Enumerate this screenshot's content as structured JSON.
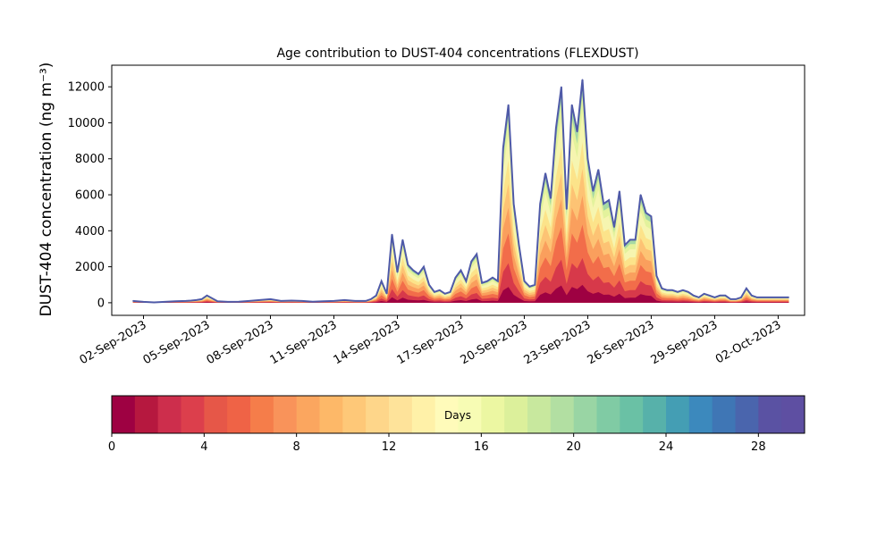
{
  "chart_data": {
    "type": "area",
    "title": "Age contribution to DUST-404 concentrations (FLEXDUST)",
    "ylabel": "DUST-404 concentration (ng m⁻³)",
    "xlabel": "",
    "x_ticks": [
      "02-Sep-2023",
      "05-Sep-2023",
      "08-Sep-2023",
      "11-Sep-2023",
      "14-Sep-2023",
      "17-Sep-2023",
      "20-Sep-2023",
      "23-Sep-2023",
      "26-Sep-2023",
      "29-Sep-2023",
      "02-Oct-2023"
    ],
    "y_ticks": [
      "0",
      "2000",
      "4000",
      "6000",
      "8000",
      "10000",
      "12000"
    ],
    "ylim": [
      -700,
      13200
    ],
    "xlim": [
      "2023-08-31T12:00",
      "2023-10-03T06:00"
    ],
    "grid": false,
    "total": {
      "x": [
        "2023-09-01T12:00",
        "2023-09-02T00:00",
        "2023-09-02T12:00",
        "2023-09-03T00:00",
        "2023-09-03T12:00",
        "2023-09-04T00:00",
        "2023-09-04T06:00",
        "2023-09-04T12:00",
        "2023-09-04T18:00",
        "2023-09-05T00:00",
        "2023-09-05T12:00",
        "2023-09-06T00:00",
        "2023-09-06T12:00",
        "2023-09-07T00:00",
        "2023-09-07T12:00",
        "2023-09-08T00:00",
        "2023-09-08T12:00",
        "2023-09-09T00:00",
        "2023-09-09T12:00",
        "2023-09-10T00:00",
        "2023-09-10T12:00",
        "2023-09-11T00:00",
        "2023-09-11T12:00",
        "2023-09-12T00:00",
        "2023-09-12T06:00",
        "2023-09-12T12:00",
        "2023-09-12T18:00",
        "2023-09-13T00:00",
        "2023-09-13T06:00",
        "2023-09-13T12:00",
        "2023-09-13T18:00",
        "2023-09-14T00:00",
        "2023-09-14T06:00",
        "2023-09-14T12:00",
        "2023-09-14T18:00",
        "2023-09-15T00:00",
        "2023-09-15T06:00",
        "2023-09-15T12:00",
        "2023-09-15T18:00",
        "2023-09-16T00:00",
        "2023-09-16T06:00",
        "2023-09-16T12:00",
        "2023-09-16T18:00",
        "2023-09-17T00:00",
        "2023-09-17T06:00",
        "2023-09-17T12:00",
        "2023-09-17T18:00",
        "2023-09-18T00:00",
        "2023-09-18T06:00",
        "2023-09-18T12:00",
        "2023-09-18T18:00",
        "2023-09-19T00:00",
        "2023-09-19T06:00",
        "2023-09-19T12:00",
        "2023-09-19T18:00",
        "2023-09-20T00:00",
        "2023-09-20T06:00",
        "2023-09-20T12:00",
        "2023-09-20T18:00",
        "2023-09-21T00:00",
        "2023-09-21T06:00",
        "2023-09-21T12:00",
        "2023-09-21T18:00",
        "2023-09-22T00:00",
        "2023-09-22T06:00",
        "2023-09-22T12:00",
        "2023-09-22T18:00",
        "2023-09-23T00:00",
        "2023-09-23T06:00",
        "2023-09-23T12:00",
        "2023-09-23T18:00",
        "2023-09-24T00:00",
        "2023-09-24T06:00",
        "2023-09-24T12:00",
        "2023-09-24T18:00",
        "2023-09-25T00:00",
        "2023-09-25T06:00",
        "2023-09-25T12:00",
        "2023-09-25T18:00",
        "2023-09-26T00:00",
        "2023-09-26T06:00",
        "2023-09-26T12:00",
        "2023-09-26T18:00",
        "2023-09-27T00:00",
        "2023-09-27T06:00",
        "2023-09-27T12:00",
        "2023-09-27T18:00",
        "2023-09-28T00:00",
        "2023-09-28T06:00",
        "2023-09-28T12:00",
        "2023-09-28T18:00",
        "2023-09-29T00:00",
        "2023-09-29T06:00",
        "2023-09-29T12:00",
        "2023-09-29T18:00",
        "2023-09-30T00:00",
        "2023-09-30T06:00",
        "2023-09-30T12:00",
        "2023-09-30T18:00",
        "2023-10-01T00:00",
        "2023-10-01T06:00",
        "2023-10-01T12:00",
        "2023-10-01T18:00",
        "2023-10-02T00:00",
        "2023-10-02T06:00",
        "2023-10-02T12:00"
      ],
      "y": [
        100,
        50,
        20,
        50,
        80,
        100,
        120,
        150,
        200,
        400,
        80,
        50,
        60,
        100,
        150,
        200,
        100,
        120,
        100,
        60,
        80,
        100,
        150,
        100,
        100,
        100,
        200,
        400,
        1200,
        500,
        3800,
        1700,
        3500,
        2100,
        1800,
        1600,
        2000,
        1000,
        600,
        700,
        500,
        600,
        1400,
        1800,
        1200,
        2300,
        2700,
        1100,
        1200,
        1400,
        1200,
        8600,
        11000,
        5500,
        3200,
        1200,
        900,
        1000,
        5500,
        7200,
        5800,
        9700,
        12000,
        5200,
        11000,
        9500,
        12400,
        8000,
        6200,
        7400,
        5500,
        5700,
        4200,
        6200,
        3200,
        3500,
        3500,
        6000,
        5000,
        4800,
        1500,
        800,
        700,
        700,
        600,
        700,
        600,
        400,
        300,
        500,
        400,
        300,
        400,
        400,
        200,
        200,
        300,
        800,
        400,
        300,
        300,
        300,
        300,
        300,
        300,
        300
      ],
      "line_color": "#4f5aa8"
    },
    "fill_colors": [
      "#f6f5b0",
      "#fce38a",
      "#fdc374",
      "#fa9f5d",
      "#f26d4a",
      "#d7394a",
      "#9e0142"
    ],
    "fill_fractions": [
      0.85,
      0.72,
      0.6,
      0.48,
      0.35,
      0.2,
      0.08
    ],
    "colorbar": {
      "label": "Days",
      "min": 0,
      "max": 30,
      "ticks": [
        "0",
        "4",
        "8",
        "12",
        "16",
        "20",
        "24",
        "28"
      ],
      "tick_values": [
        0,
        4,
        8,
        12,
        16,
        20,
        24,
        28
      ],
      "colors": [
        "#9e0142",
        "#b6183f",
        "#cd2e4c",
        "#dc3f4c",
        "#e65748",
        "#ef6346",
        "#f57d4a",
        "#f9935a",
        "#fba65f",
        "#fdb868",
        "#fec878",
        "#fed68a",
        "#fee39a",
        "#fff1a8",
        "#fffbba",
        "#f7fcb4",
        "#ecf7a2",
        "#dcf09b",
        "#c8e89e",
        "#b2dfa2",
        "#99d5a4",
        "#80cba4",
        "#6ac1a5",
        "#57b1aa",
        "#449eb4",
        "#3c89bd",
        "#3f76b5",
        "#4a65ad",
        "#5a52a3",
        "#5e4fa2"
      ]
    }
  }
}
